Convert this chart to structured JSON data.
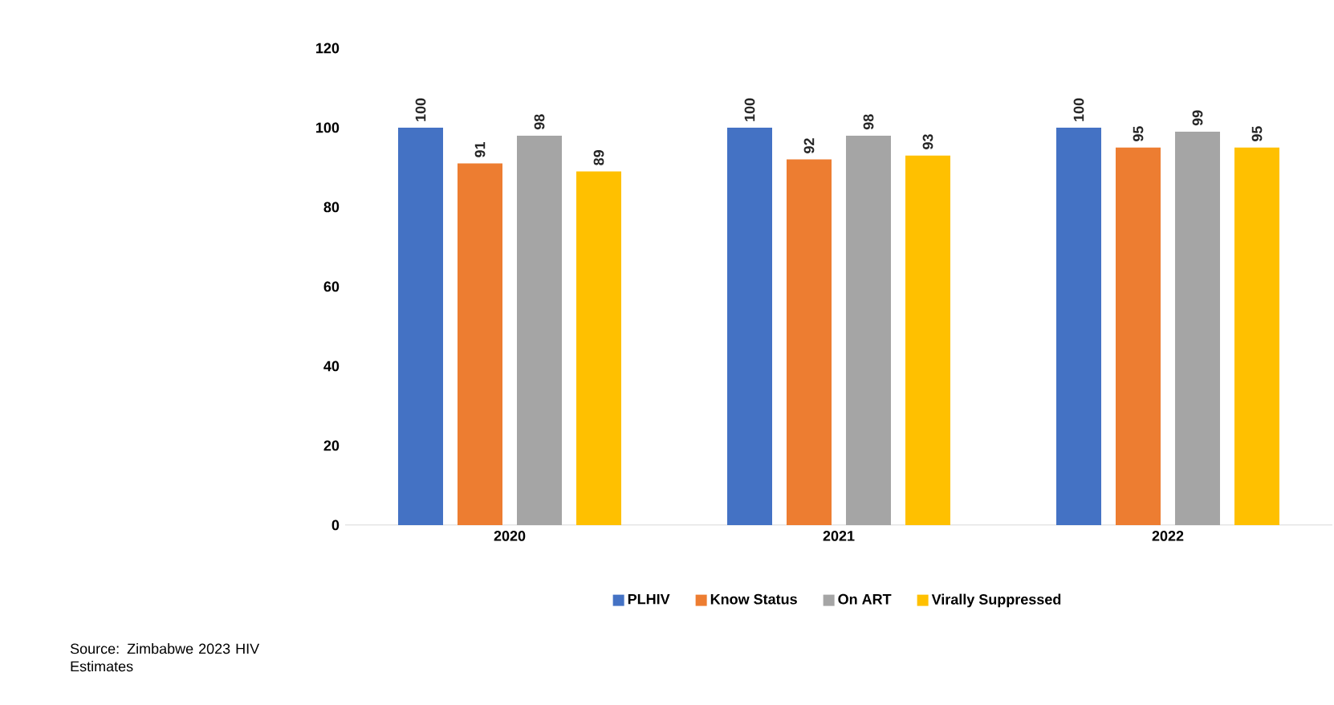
{
  "chart_data": {
    "type": "bar",
    "categories": [
      "2020",
      "2021",
      "2022"
    ],
    "series": [
      {
        "name": "PLHIV",
        "color": "#4472c4",
        "values": [
          100,
          100,
          100
        ]
      },
      {
        "name": "Know Status",
        "color": "#ed7d31",
        "values": [
          91,
          92,
          95
        ]
      },
      {
        "name": "On ART",
        "color": "#a5a5a5",
        "values": [
          98,
          98,
          99
        ]
      },
      {
        "name": "Virally Suppressed",
        "color": "#ffc000",
        "values": [
          89,
          93,
          95
        ]
      }
    ],
    "ylim": [
      0,
      120
    ],
    "yticks": [
      0,
      20,
      40,
      60,
      80,
      100,
      120
    ],
    "data_labels": true,
    "legend": "bottom",
    "annotations": [
      "Source: Zimbabwe 2023 HIV Estimates"
    ]
  }
}
